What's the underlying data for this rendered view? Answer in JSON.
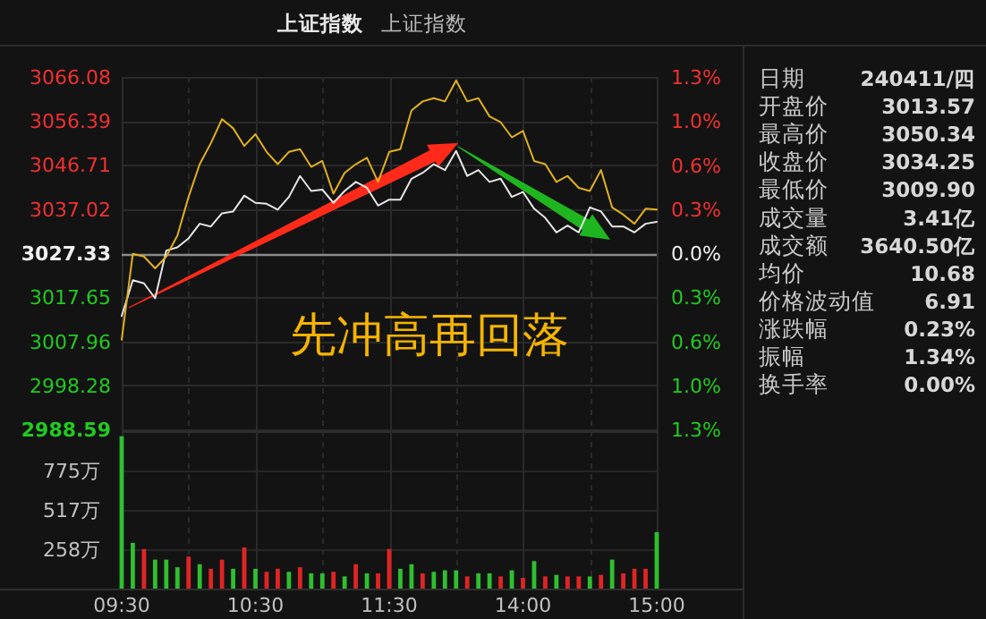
{
  "chart_data": [
    {
      "type": "line",
      "title": "上证指数",
      "subtitle": "上证指数",
      "grid": true,
      "tick_labels": "y",
      "categories": [
        null,
        null,
        null,
        null,
        null,
        null,
        null,
        null,
        null,
        null,
        null,
        null,
        null,
        null,
        null,
        null,
        null,
        null,
        null,
        null,
        null,
        null,
        null,
        null,
        null,
        null,
        null,
        null,
        null,
        null,
        null,
        null,
        null,
        null,
        null,
        null,
        null,
        null,
        null,
        null,
        null,
        null,
        null,
        null,
        null,
        null,
        null,
        null,
        null
      ],
      "ylim": [
        2988.59,
        3066.08
      ],
      "yticks": [
        2988.59,
        2998.28,
        3007.96,
        3017.65,
        3027.33,
        3037.02,
        3046.71,
        3056.39,
        3066.08
      ],
      "y2lim": [
        -1.28,
        1.28
      ],
      "y2ticks": [
        {
          "value": -1.28,
          "label": "1.3%"
        },
        {
          "value": -0.96,
          "label": "1.0%"
        },
        {
          "value": -0.64,
          "label": "0.6%"
        },
        {
          "value": -0.32,
          "label": "0.3%"
        },
        {
          "value": 0,
          "label": "0.0%"
        },
        {
          "value": 0.32,
          "label": "0.3%"
        },
        {
          "value": 0.64,
          "label": "0.6%"
        },
        {
          "value": 0.96,
          "label": "1.0%"
        },
        {
          "value": 1.28,
          "label": "1.3%"
        }
      ],
      "ref_lines": [
        {
          "axis": "y",
          "value": 3027.33,
          "color": "#8a8a8a"
        }
      ],
      "annotations": [
        "先冲高再回落"
      ],
      "series": [
        {
          "color": "#e6e6e6",
          "values": [
            3013.5,
            3021.4,
            3020.7,
            3017.4,
            3027.9,
            3028.6,
            3030.6,
            3033.8,
            3033.2,
            3036.1,
            3036.5,
            3040.0,
            3038.4,
            3038.2,
            3036.9,
            3039.7,
            3044.3,
            3041.0,
            3041.3,
            3038.4,
            3041.0,
            3043.0,
            3041.7,
            3037.8,
            3039.1,
            3039.1,
            3043.7,
            3045.0,
            3046.9,
            3045.6,
            3049.8,
            3044.3,
            3045.6,
            3043.0,
            3043.7,
            3039.7,
            3040.8,
            3037.1,
            3035.1,
            3031.9,
            3033.4,
            3031.9,
            3037.4,
            3036.5,
            3033.2,
            3033.2,
            3031.9,
            3033.8,
            3034.2
          ]
        },
        {
          "color": "#e0b020",
          "values": [
            3008.3,
            3027.2,
            3026.6,
            3024.0,
            3026.6,
            3031.2,
            3039.7,
            3046.9,
            3051.5,
            3056.8,
            3054.8,
            3050.9,
            3053.5,
            3049.6,
            3046.9,
            3049.6,
            3050.2,
            3046.3,
            3047.6,
            3040.4,
            3045.0,
            3046.9,
            3048.3,
            3043.0,
            3049.6,
            3050.2,
            3058.7,
            3060.7,
            3061.4,
            3060.7,
            3065.3,
            3060.7,
            3061.4,
            3057.4,
            3056.1,
            3052.8,
            3054.2,
            3047.6,
            3046.9,
            3043.0,
            3044.3,
            3041.7,
            3041.0,
            3045.6,
            3037.4,
            3035.8,
            3033.8,
            3037.1,
            3036.9
          ]
        }
      ]
    },
    {
      "type": "bar",
      "grid": true,
      "categories": [
        "09:30",
        null,
        null,
        null,
        null,
        null,
        null,
        null,
        null,
        null,
        null,
        null,
        "10:30",
        null,
        null,
        null,
        null,
        null,
        null,
        null,
        null,
        null,
        null,
        null,
        "11:30",
        null,
        null,
        null,
        null,
        null,
        null,
        null,
        null,
        null,
        null,
        null,
        "14:00",
        null,
        null,
        null,
        null,
        null,
        null,
        null,
        null,
        null,
        null,
        null,
        "15:00"
      ],
      "ylim": [
        0,
        1033
      ],
      "yticks": [
        {
          "value": 258,
          "label": "258万"
        },
        {
          "value": 517,
          "label": "517万"
        },
        {
          "value": 775,
          "label": "775万"
        }
      ],
      "values": [
        1000,
        300,
        260,
        190,
        190,
        140,
        210,
        160,
        130,
        190,
        130,
        270,
        130,
        110,
        130,
        110,
        140,
        100,
        100,
        110,
        80,
        160,
        100,
        100,
        260,
        130,
        160,
        100,
        110,
        120,
        120,
        80,
        100,
        100,
        80,
        120,
        70,
        180,
        80,
        90,
        80,
        80,
        80,
        90,
        190,
        100,
        130,
        130,
        370
      ],
      "colors": [
        "#2fbf2f",
        "#2fbf2f",
        "#e02424",
        "#2fbf2f",
        "#2fbf2f",
        "#2fbf2f",
        "#e02424",
        "#2fbf2f",
        "#e02424",
        "#e02424",
        "#2fbf2f",
        "#e02424",
        "#2fbf2f",
        "#e02424",
        "#e02424",
        "#2fbf2f",
        "#e02424",
        "#2fbf2f",
        "#2fbf2f",
        "#e02424",
        "#2fbf2f",
        "#e02424",
        "#2fbf2f",
        "#e02424",
        "#e02424",
        "#2fbf2f",
        "#2fbf2f",
        "#e02424",
        "#2fbf2f",
        "#2fbf2f",
        "#2fbf2f",
        "#e02424",
        "#2fbf2f",
        "#2fbf2f",
        "#e02424",
        "#2fbf2f",
        "#e02424",
        "#2fbf2f",
        "#e02424",
        "#2fbf2f",
        "#e02424",
        "#e02424",
        "#2fbf2f",
        "#e02424",
        "#2fbf2f",
        "#e02424",
        "#e02424",
        "#e02424",
        "#2fbf2f"
      ]
    },
    {
      "type": "other",
      "categories": [
        "日期",
        "开盘价",
        "最高价",
        "收盘价",
        "最低价",
        "成交量",
        "成交额",
        "均价",
        "价格波动值",
        "涨跌幅",
        "振幅",
        "换手率"
      ],
      "value_labels": [
        "240411/四",
        "3013.57",
        "3050.34",
        "3034.25",
        "3009.90",
        "3.41亿",
        "3640.50亿",
        "10.68",
        "6.91",
        "0.23%",
        "1.34%",
        "0.00%"
      ]
    }
  ]
}
